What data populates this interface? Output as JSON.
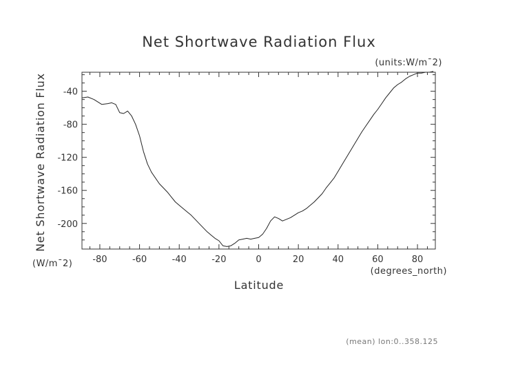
{
  "chart_data": {
    "type": "line",
    "title": "Net Shortwave Radiation Flux",
    "units_label": "(units:W/m¯2)",
    "xlabel": "Latitude",
    "xlabel_units": "(degrees_north)",
    "ylabel": "Net Shortwave Radiation Flux",
    "ylabel_units": "(W/m¯2)",
    "footnote": "(mean) lon:0..358.125",
    "xlim": [
      -89,
      89
    ],
    "ylim": [
      -231,
      -17
    ],
    "x_ticks": [
      -80,
      -60,
      -40,
      -20,
      0,
      20,
      40,
      60,
      80
    ],
    "y_ticks": [
      -40,
      -80,
      -120,
      -160,
      -200
    ],
    "grid": false,
    "series": [
      {
        "x": [
          -89,
          -86,
          -83,
          -81,
          -79,
          -76,
          -74,
          -72,
          -70,
          -68,
          -66,
          -64,
          -62,
          -60,
          -58,
          -56,
          -54,
          -52,
          -50,
          -48,
          -46,
          -44,
          -42,
          -40,
          -38,
          -36,
          -34,
          -32,
          -30,
          -28,
          -26,
          -24,
          -22,
          -20,
          -18,
          -16,
          -14,
          -12,
          -10,
          -8,
          -6,
          -4,
          -2,
          0,
          2,
          4,
          6,
          8,
          10,
          12,
          14,
          16,
          18,
          20,
          22,
          24,
          26,
          28,
          30,
          32,
          34,
          36,
          38,
          40,
          42,
          44,
          46,
          48,
          50,
          52,
          54,
          56,
          58,
          60,
          62,
          64,
          66,
          68,
          70,
          72,
          74,
          76,
          78,
          80,
          82,
          84,
          86,
          88
        ],
        "y": [
          -48,
          -47,
          -50,
          -53,
          -56,
          -55,
          -54,
          -56,
          -66,
          -67,
          -64,
          -70,
          -80,
          -94,
          -113,
          -128,
          -138,
          -145,
          -152,
          -157,
          -162,
          -168,
          -174,
          -178,
          -182,
          -186,
          -190,
          -195,
          -200,
          -205,
          -210,
          -214,
          -218,
          -221,
          -227,
          -228,
          -227,
          -224,
          -220,
          -219,
          -218,
          -219,
          -218,
          -217,
          -213,
          -206,
          -197,
          -192,
          -194,
          -197,
          -195,
          -193,
          -190,
          -187,
          -185,
          -182,
          -178,
          -174,
          -169,
          -164,
          -157,
          -151,
          -145,
          -137,
          -129,
          -121,
          -113,
          -105,
          -97,
          -89,
          -82,
          -75,
          -68,
          -62,
          -55,
          -48,
          -42,
          -36,
          -32,
          -29,
          -25,
          -22,
          -20,
          -18,
          -18,
          -17,
          -17,
          -16
        ]
      }
    ]
  }
}
